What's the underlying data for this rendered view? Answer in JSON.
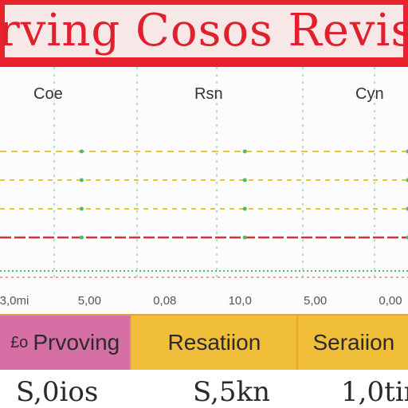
{
  "header": {
    "title": "rving Cosos Revis"
  },
  "columns": [
    "Coe",
    "Rsn",
    "Cyn"
  ],
  "categories": [
    {
      "prefix": "£o",
      "label": "Prvoving"
    },
    {
      "prefix": "",
      "label": "Resatiion"
    },
    {
      "prefix": "",
      "label": "Seraiion"
    }
  ],
  "values": [
    "S,0ios",
    "S,5kn",
    "1,0tin"
  ],
  "tick_labels": [
    "3,0mi",
    "5,00",
    "0,08",
    "10,0",
    "5,00",
    "0,00"
  ],
  "colors": {
    "banner": "#e8232f",
    "line_red": "#d6303a",
    "line_yellow": "#e3c83a",
    "grid_green": "#4fb86b",
    "cat_pink": "#d66fa4",
    "cat_yellow": "#f1be3a"
  },
  "chart_data": {
    "type": "line",
    "grid": true,
    "series": [
      {
        "values": [
          4,
          4,
          4,
          4,
          4,
          4
        ]
      },
      {
        "values": [
          3,
          3,
          3,
          3,
          3,
          3
        ]
      },
      {
        "values": [
          2,
          2,
          2,
          2,
          2,
          2
        ]
      },
      {
        "values": [
          1,
          1,
          1,
          1,
          1,
          1
        ]
      }
    ],
    "ylim": [
      0,
      5
    ]
  }
}
